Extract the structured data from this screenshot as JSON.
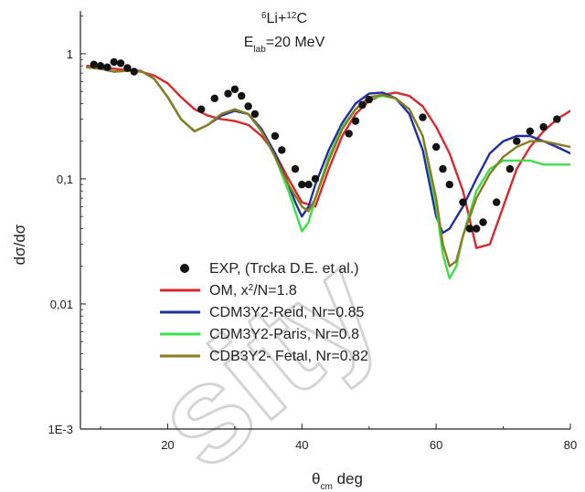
{
  "chart_data": {
    "type": "line",
    "annotation": {
      "reaction_line": [
        "6",
        "Li+",
        "12",
        "C"
      ],
      "energy_line": [
        "E",
        "lab",
        "=20 MeV"
      ]
    },
    "xlabel": [
      "θ",
      "cm",
      " deg"
    ],
    "ylabel": "dσ/dσ",
    "xlim": [
      7,
      80
    ],
    "ylim": [
      0.001,
      2.2
    ],
    "yscale": "log",
    "xticks": [
      20,
      40,
      60,
      80
    ],
    "xtick_labels": [
      "20",
      "40",
      "60",
      "80"
    ],
    "yticks": [
      1,
      0.1,
      0.01,
      0.001
    ],
    "ytick_labels": [
      "1",
      "0,1",
      "0,01",
      "1E-3"
    ],
    "grid": false,
    "legend_position": "lower-left",
    "watermark": "sity",
    "experiment": {
      "label": "EXP, (Trcka D.E. et al.)",
      "color": "#111111",
      "x": [
        9,
        10,
        11,
        12,
        13,
        14,
        15,
        25,
        27,
        29,
        30,
        31,
        32,
        33,
        36,
        37,
        39,
        40,
        41,
        42,
        47,
        48,
        49,
        50,
        58,
        60,
        61,
        62,
        64,
        65,
        66,
        67,
        69,
        71,
        72,
        74,
        76,
        78
      ],
      "y": [
        0.82,
        0.8,
        0.78,
        0.86,
        0.84,
        0.77,
        0.72,
        0.36,
        0.44,
        0.48,
        0.52,
        0.46,
        0.38,
        0.33,
        0.22,
        0.17,
        0.12,
        0.09,
        0.09,
        0.1,
        0.23,
        0.29,
        0.39,
        0.43,
        0.31,
        0.18,
        0.12,
        0.09,
        0.065,
        0.04,
        0.04,
        0.045,
        0.065,
        0.12,
        0.2,
        0.24,
        0.26,
        0.3
      ]
    },
    "series": [
      {
        "name": "OM, x2/N=1.8",
        "label_parts": [
          "OM, x",
          "2",
          "/N=1.8"
        ],
        "color": "#d8282c",
        "x": [
          8,
          10,
          12,
          14,
          16,
          18,
          20,
          22,
          24,
          26,
          28,
          30,
          32,
          34,
          36,
          38,
          40,
          42,
          44,
          46,
          48,
          50,
          52,
          54,
          56,
          58,
          60,
          62,
          64,
          66,
          68,
          70,
          72,
          74,
          76,
          78,
          80
        ],
        "y": [
          0.8,
          0.78,
          0.76,
          0.74,
          0.72,
          0.67,
          0.58,
          0.45,
          0.36,
          0.32,
          0.3,
          0.29,
          0.27,
          0.22,
          0.16,
          0.1,
          0.065,
          0.06,
          0.12,
          0.22,
          0.33,
          0.42,
          0.47,
          0.49,
          0.46,
          0.38,
          0.26,
          0.16,
          0.08,
          0.028,
          0.03,
          0.06,
          0.12,
          0.18,
          0.24,
          0.3,
          0.35
        ]
      },
      {
        "name": "CDM3Y2-Reid, Nr=0.85",
        "label_parts": [
          "CDM3Y2-Reid, Nr=0.85"
        ],
        "color": "#1f2fa0",
        "x": [
          8,
          10,
          12,
          14,
          16,
          18,
          20,
          22,
          24,
          26,
          28,
          30,
          32,
          34,
          36,
          38,
          39,
          40,
          41,
          42,
          44,
          46,
          48,
          50,
          52,
          54,
          56,
          58,
          60,
          61,
          62,
          64,
          66,
          68,
          70,
          72,
          74,
          76,
          78,
          80
        ],
        "y": [
          0.78,
          0.76,
          0.72,
          0.73,
          0.73,
          0.63,
          0.45,
          0.3,
          0.24,
          0.27,
          0.32,
          0.35,
          0.33,
          0.25,
          0.16,
          0.09,
          0.065,
          0.05,
          0.06,
          0.09,
          0.17,
          0.28,
          0.4,
          0.48,
          0.49,
          0.44,
          0.33,
          0.17,
          0.05,
          0.037,
          0.04,
          0.06,
          0.1,
          0.16,
          0.2,
          0.22,
          0.22,
          0.2,
          0.18,
          0.16
        ]
      },
      {
        "name": "CDM3Y2-Paris, Nr=0.8",
        "label_parts": [
          "CDM3Y2-Paris, Nr=0.8"
        ],
        "color": "#3ee04a",
        "x": [
          8,
          10,
          12,
          14,
          16,
          18,
          20,
          22,
          24,
          26,
          28,
          30,
          32,
          34,
          36,
          38,
          40,
          41,
          42,
          44,
          46,
          48,
          50,
          52,
          54,
          56,
          58,
          60,
          61,
          62,
          63,
          64,
          66,
          68,
          70,
          72,
          74,
          76,
          78,
          80
        ],
        "y": [
          0.78,
          0.76,
          0.72,
          0.73,
          0.73,
          0.63,
          0.45,
          0.3,
          0.24,
          0.27,
          0.33,
          0.36,
          0.33,
          0.24,
          0.15,
          0.08,
          0.038,
          0.045,
          0.07,
          0.15,
          0.26,
          0.36,
          0.44,
          0.46,
          0.44,
          0.36,
          0.22,
          0.06,
          0.025,
          0.016,
          0.02,
          0.035,
          0.08,
          0.12,
          0.14,
          0.14,
          0.14,
          0.13,
          0.13,
          0.13
        ]
      },
      {
        "name": "CDB3Y2- Fetal, Nr=0.82",
        "label_parts": [
          "CDB3Y2- Fetal, Nr=0.82"
        ],
        "color": "#8a7a22",
        "x": [
          8,
          10,
          12,
          14,
          16,
          18,
          20,
          22,
          24,
          26,
          28,
          30,
          32,
          34,
          36,
          38,
          40,
          41,
          42,
          44,
          46,
          48,
          50,
          52,
          54,
          56,
          58,
          60,
          61,
          62,
          63,
          64,
          66,
          68,
          70,
          72,
          74,
          76,
          78,
          80
        ],
        "y": [
          0.78,
          0.76,
          0.72,
          0.73,
          0.73,
          0.63,
          0.45,
          0.3,
          0.24,
          0.27,
          0.33,
          0.36,
          0.33,
          0.24,
          0.15,
          0.09,
          0.06,
          0.055,
          0.07,
          0.14,
          0.25,
          0.36,
          0.45,
          0.47,
          0.44,
          0.36,
          0.22,
          0.07,
          0.03,
          0.02,
          0.022,
          0.035,
          0.07,
          0.11,
          0.15,
          0.18,
          0.2,
          0.2,
          0.19,
          0.18
        ]
      }
    ]
  }
}
